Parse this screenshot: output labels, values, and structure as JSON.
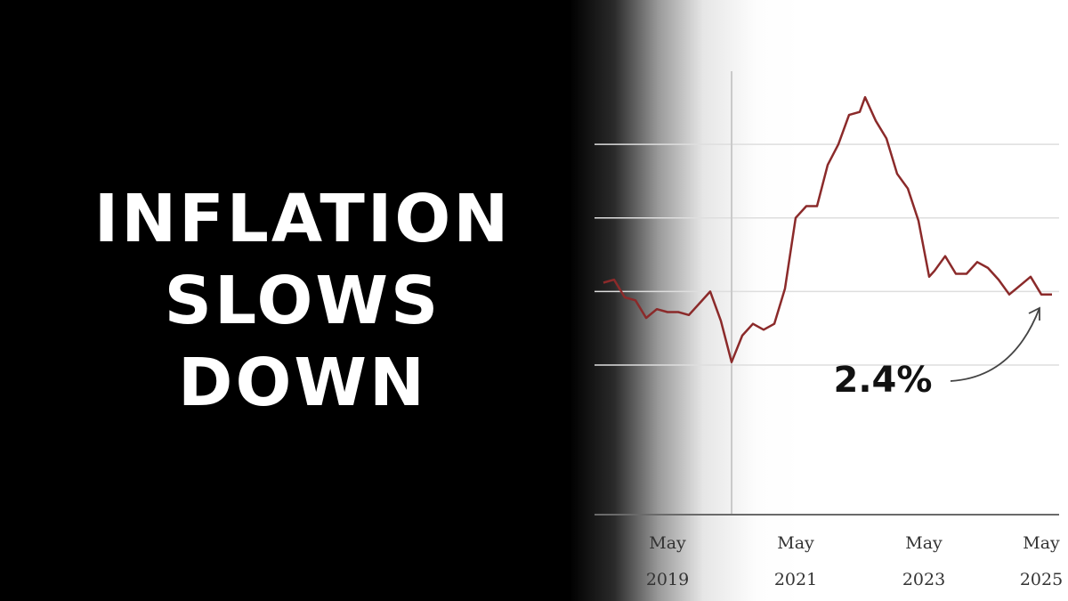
{
  "headline": {
    "line1": "INFLATION",
    "line2": "SLOWS",
    "line3": "DOWN"
  },
  "chart_data": {
    "type": "line",
    "title": "",
    "xlabel": "",
    "ylabel": "",
    "x_tick_labels": [
      {
        "month": "May",
        "year": "2019"
      },
      {
        "month": "May",
        "year": "2021"
      },
      {
        "month": "May",
        "year": "2023"
      },
      {
        "month": "May",
        "year": "2025"
      }
    ],
    "x_range": [
      "2018-05",
      "2025-06"
    ],
    "grid": "horizontal",
    "series": [
      {
        "color": "#8b2a2a",
        "points": [
          [
            "2018-05",
            2.8
          ],
          [
            "2018-07",
            2.9
          ],
          [
            "2018-09",
            2.3
          ],
          [
            "2018-11",
            2.2
          ],
          [
            "2019-01",
            1.6
          ],
          [
            "2019-03",
            1.9
          ],
          [
            "2019-05",
            1.8
          ],
          [
            "2019-07",
            1.8
          ],
          [
            "2019-09",
            1.7
          ],
          [
            "2019-11",
            2.1
          ],
          [
            "2020-01",
            2.5
          ],
          [
            "2020-03",
            1.5
          ],
          [
            "2020-05",
            0.1
          ],
          [
            "2020-07",
            1.0
          ],
          [
            "2020-09",
            1.4
          ],
          [
            "2020-11",
            1.2
          ],
          [
            "2021-01",
            1.4
          ],
          [
            "2021-03",
            2.6
          ],
          [
            "2021-05",
            5.0
          ],
          [
            "2021-07",
            5.4
          ],
          [
            "2021-09",
            5.4
          ],
          [
            "2021-11",
            6.8
          ],
          [
            "2022-01",
            7.5
          ],
          [
            "2022-03",
            8.5
          ],
          [
            "2022-05",
            8.6
          ],
          [
            "2022-06",
            9.1
          ],
          [
            "2022-08",
            8.3
          ],
          [
            "2022-10",
            7.7
          ],
          [
            "2022-12",
            6.5
          ],
          [
            "2023-02",
            6.0
          ],
          [
            "2023-04",
            4.9
          ],
          [
            "2023-06",
            3.0
          ],
          [
            "2023-07",
            3.2
          ],
          [
            "2023-09",
            3.7
          ],
          [
            "2023-11",
            3.1
          ],
          [
            "2024-01",
            3.1
          ],
          [
            "2024-03",
            3.5
          ],
          [
            "2024-05",
            3.3
          ],
          [
            "2024-07",
            2.9
          ],
          [
            "2024-09",
            2.4
          ],
          [
            "2024-11",
            2.7
          ],
          [
            "2025-01",
            3.0
          ],
          [
            "2025-03",
            2.4
          ],
          [
            "2025-05",
            2.4
          ]
        ]
      }
    ],
    "annotation": {
      "text": "2.4%",
      "points_to": "2025-05"
    }
  }
}
